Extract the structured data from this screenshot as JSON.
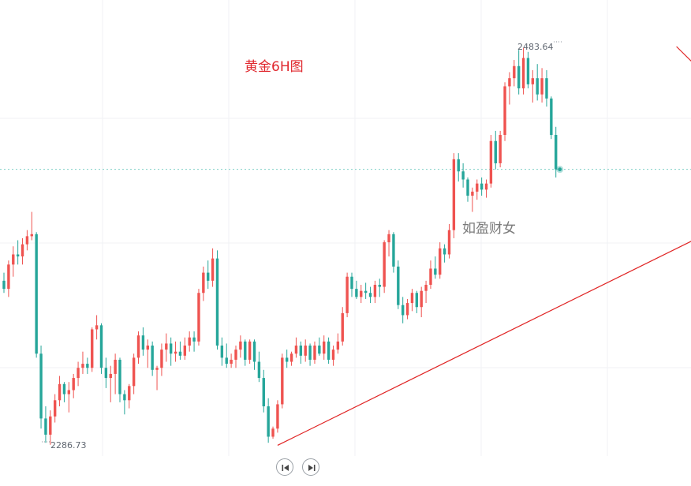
{
  "title": "黄金6H图",
  "watermark": "如盈财女",
  "colors": {
    "up": "#ef5350",
    "down": "#26a69a",
    "trendline": "#e02424",
    "annotation": "#e0282e",
    "watermark": "#7a7a7a"
  },
  "navigation": {
    "prev_icon": "skip-back-icon",
    "next_icon": "skip-forward-icon"
  },
  "chart_data": {
    "type": "candlestick",
    "title": "黄金6H图",
    "xlabel": "",
    "ylabel": "",
    "ylim": [
      2250,
      2510
    ],
    "grid": true,
    "annotations": [
      {
        "label": "2483.64",
        "value": 2483.64,
        "kind": "high"
      },
      {
        "label": "2286.73",
        "value": 2286.73,
        "kind": "low"
      }
    ],
    "trendlines": [
      {
        "name": "support",
        "from": [
          59,
          2286.73
        ],
        "to": [
          175,
          2418
        ]
      },
      {
        "name": "resistance",
        "from": [
          145,
          2483.64
        ],
        "to": [
          172,
          2421
        ]
      }
    ],
    "projection": [
      {
        "from": [
          152,
          2423
        ],
        "to": [
          158,
          2440
        ]
      },
      {
        "from": [
          158,
          2440
        ],
        "to": [
          163,
          2416
        ]
      }
    ],
    "candles": [
      [
        2368,
        2372,
        2362,
        2364
      ],
      [
        2364,
        2378,
        2360,
        2376
      ],
      [
        2376,
        2385,
        2370,
        2381
      ],
      [
        2381,
        2388,
        2376,
        2380
      ],
      [
        2380,
        2389,
        2376,
        2386
      ],
      [
        2386,
        2393,
        2383,
        2390
      ],
      [
        2390,
        2402,
        2388,
        2391
      ],
      [
        2391,
        2392,
        2330,
        2332
      ],
      [
        2332,
        2336,
        2295,
        2300
      ],
      [
        2300,
        2306,
        2288,
        2292
      ],
      [
        2292,
        2304,
        2287,
        2301
      ],
      [
        2301,
        2312,
        2298,
        2309
      ],
      [
        2309,
        2321,
        2306,
        2317
      ],
      [
        2317,
        2318,
        2308,
        2312
      ],
      [
        2312,
        2318,
        2303,
        2314
      ],
      [
        2314,
        2322,
        2310,
        2320
      ],
      [
        2320,
        2328,
        2316,
        2325
      ],
      [
        2325,
        2333,
        2322,
        2327
      ],
      [
        2327,
        2330,
        2322,
        2325
      ],
      [
        2325,
        2345,
        2323,
        2344
      ],
      [
        2344,
        2351,
        2339,
        2346
      ],
      [
        2346,
        2347,
        2322,
        2325
      ],
      [
        2325,
        2330,
        2315,
        2320
      ],
      [
        2320,
        2326,
        2308,
        2322
      ],
      [
        2322,
        2332,
        2312,
        2329
      ],
      [
        2329,
        2330,
        2308,
        2312
      ],
      [
        2312,
        2314,
        2302,
        2309
      ],
      [
        2309,
        2317,
        2305,
        2316
      ],
      [
        2316,
        2332,
        2312,
        2330
      ],
      [
        2330,
        2343,
        2327,
        2341
      ],
      [
        2341,
        2345,
        2331,
        2334
      ],
      [
        2334,
        2339,
        2325,
        2336
      ],
      [
        2336,
        2338,
        2321,
        2324
      ],
      [
        2324,
        2326,
        2314,
        2325
      ],
      [
        2325,
        2337,
        2321,
        2334
      ],
      [
        2334,
        2342,
        2328,
        2337
      ],
      [
        2337,
        2340,
        2326,
        2332
      ],
      [
        2332,
        2338,
        2328,
        2333
      ],
      [
        2333,
        2338,
        2329,
        2331
      ],
      [
        2331,
        2340,
        2329,
        2336
      ],
      [
        2336,
        2343,
        2333,
        2340
      ],
      [
        2340,
        2343,
        2333,
        2338
      ],
      [
        2338,
        2364,
        2336,
        2362
      ],
      [
        2362,
        2375,
        2358,
        2372
      ],
      [
        2372,
        2378,
        2364,
        2368
      ],
      [
        2368,
        2384,
        2365,
        2379
      ],
      [
        2379,
        2383,
        2334,
        2336
      ],
      [
        2336,
        2340,
        2326,
        2330
      ],
      [
        2330,
        2337,
        2325,
        2327
      ],
      [
        2327,
        2332,
        2325,
        2329
      ],
      [
        2329,
        2336,
        2325,
        2334
      ],
      [
        2334,
        2341,
        2330,
        2338
      ],
      [
        2338,
        2339,
        2326,
        2329
      ],
      [
        2329,
        2339,
        2327,
        2338
      ],
      [
        2338,
        2339,
        2324,
        2328
      ],
      [
        2328,
        2333,
        2318,
        2320
      ],
      [
        2320,
        2324,
        2303,
        2306
      ],
      [
        2306,
        2310,
        2288,
        2291
      ],
      [
        2291,
        2296,
        2290,
        2295
      ],
      [
        2295,
        2309,
        2293,
        2307
      ],
      [
        2307,
        2332,
        2305,
        2330
      ],
      [
        2330,
        2334,
        2325,
        2328
      ],
      [
        2328,
        2333,
        2326,
        2332
      ],
      [
        2332,
        2340,
        2330,
        2336
      ],
      [
        2336,
        2338,
        2327,
        2331
      ],
      [
        2331,
        2339,
        2328,
        2336
      ],
      [
        2336,
        2337,
        2326,
        2329
      ],
      [
        2329,
        2338,
        2327,
        2336
      ],
      [
        2336,
        2340,
        2331,
        2332
      ],
      [
        2332,
        2341,
        2329,
        2338
      ],
      [
        2338,
        2340,
        2327,
        2329
      ],
      [
        2329,
        2336,
        2326,
        2334
      ],
      [
        2334,
        2342,
        2332,
        2338
      ],
      [
        2338,
        2355,
        2336,
        2352
      ],
      [
        2352,
        2372,
        2350,
        2370
      ],
      [
        2370,
        2372,
        2360,
        2364
      ],
      [
        2364,
        2368,
        2359,
        2360
      ],
      [
        2360,
        2366,
        2357,
        2363
      ],
      [
        2363,
        2367,
        2359,
        2362
      ],
      [
        2362,
        2365,
        2357,
        2360
      ],
      [
        2360,
        2368,
        2357,
        2366
      ],
      [
        2366,
        2369,
        2360,
        2365
      ],
      [
        2365,
        2388,
        2362,
        2387
      ],
      [
        2387,
        2393,
        2380,
        2391
      ],
      [
        2391,
        2392,
        2372,
        2375
      ],
      [
        2375,
        2378,
        2354,
        2356
      ],
      [
        2356,
        2360,
        2347,
        2351
      ],
      [
        2351,
        2359,
        2349,
        2357
      ],
      [
        2357,
        2364,
        2353,
        2362
      ],
      [
        2362,
        2363,
        2352,
        2355
      ],
      [
        2355,
        2365,
        2350,
        2363
      ],
      [
        2363,
        2368,
        2357,
        2366
      ],
      [
        2366,
        2378,
        2364,
        2374
      ],
      [
        2374,
        2380,
        2369,
        2371
      ],
      [
        2371,
        2387,
        2369,
        2384
      ],
      [
        2384,
        2386,
        2377,
        2381
      ],
      [
        2381,
        2396,
        2379,
        2393
      ],
      [
        2393,
        2431,
        2389,
        2428
      ],
      [
        2428,
        2431,
        2417,
        2422
      ],
      [
        2422,
        2426,
        2414,
        2418
      ],
      [
        2418,
        2419,
        2407,
        2410
      ],
      [
        2410,
        2414,
        2402,
        2412
      ],
      [
        2412,
        2418,
        2408,
        2416
      ],
      [
        2416,
        2419,
        2410,
        2413
      ],
      [
        2413,
        2418,
        2409,
        2416
      ],
      [
        2416,
        2440,
        2414,
        2437
      ],
      [
        2437,
        2442,
        2423,
        2426
      ],
      [
        2426,
        2442,
        2424,
        2440
      ],
      [
        2440,
        2466,
        2437,
        2464
      ],
      [
        2464,
        2471,
        2455,
        2468
      ],
      [
        2468,
        2477,
        2464,
        2474
      ],
      [
        2474,
        2482,
        2460,
        2463
      ],
      [
        2463,
        2483,
        2460,
        2478
      ],
      [
        2478,
        2481,
        2463,
        2465
      ],
      [
        2465,
        2472,
        2456,
        2468
      ],
      [
        2468,
        2475,
        2457,
        2460
      ],
      [
        2460,
        2473,
        2456,
        2468
      ],
      [
        2468,
        2472,
        2454,
        2458
      ],
      [
        2458,
        2459,
        2438,
        2440
      ],
      [
        2440,
        2444,
        2419,
        2423
      ]
    ]
  }
}
